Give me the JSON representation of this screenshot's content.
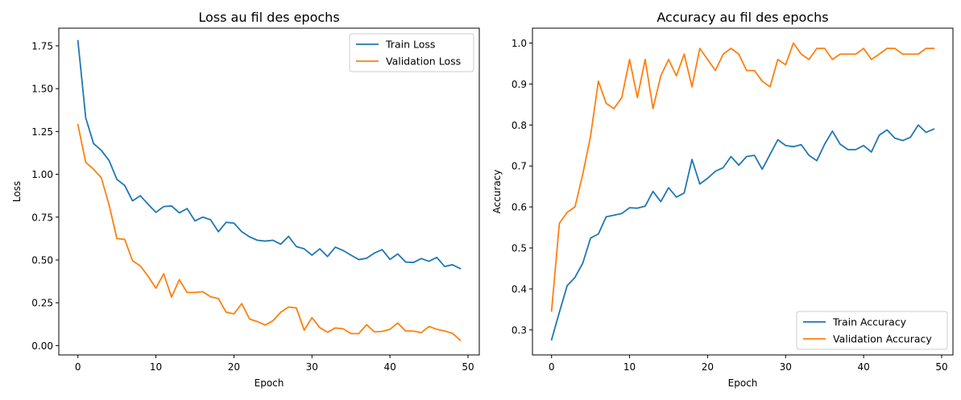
{
  "chart_data": [
    {
      "type": "line",
      "title": "Loss au fil des epochs",
      "xlabel": "Epoch",
      "ylabel": "Loss",
      "xlim": [
        -2.45,
        51.45
      ],
      "ylim": [
        -0.0546,
        1.8533
      ],
      "xticks": [
        0,
        10,
        20,
        30,
        40,
        50
      ],
      "yticks": [
        0.0,
        0.25,
        0.5,
        0.75,
        1.0,
        1.25,
        1.5,
        1.75
      ],
      "ytick_decimals": 2,
      "grid": false,
      "legend_position": "top-right",
      "x": [
        0,
        1,
        2,
        3,
        4,
        5,
        6,
        7,
        8,
        9,
        10,
        11,
        12,
        13,
        14,
        15,
        16,
        17,
        18,
        19,
        20,
        21,
        22,
        23,
        24,
        25,
        26,
        27,
        28,
        29,
        30,
        31,
        32,
        33,
        34,
        35,
        36,
        37,
        38,
        39,
        40,
        41,
        42,
        43,
        44,
        45,
        46,
        47,
        48,
        49
      ],
      "series": [
        {
          "name": "Train Loss",
          "color": "#1f77b4",
          "values": [
            1.78,
            1.33,
            1.18,
            1.14,
            1.08,
            0.97,
            0.935,
            0.845,
            0.875,
            0.825,
            0.778,
            0.812,
            0.815,
            0.775,
            0.8,
            0.728,
            0.75,
            0.735,
            0.665,
            0.72,
            0.715,
            0.665,
            0.635,
            0.615,
            0.61,
            0.615,
            0.592,
            0.638,
            0.578,
            0.565,
            0.528,
            0.565,
            0.52,
            0.575,
            0.555,
            0.528,
            0.502,
            0.51,
            0.54,
            0.56,
            0.503,
            0.535,
            0.488,
            0.485,
            0.508,
            0.492,
            0.515,
            0.462,
            0.472,
            0.45
          ]
        },
        {
          "name": "Validation Loss",
          "color": "#ff7f0e",
          "values": [
            1.29,
            1.07,
            1.03,
            0.98,
            0.82,
            0.625,
            0.62,
            0.495,
            0.465,
            0.405,
            0.335,
            0.42,
            0.283,
            0.385,
            0.31,
            0.31,
            0.315,
            0.285,
            0.275,
            0.195,
            0.185,
            0.245,
            0.155,
            0.14,
            0.12,
            0.145,
            0.195,
            0.225,
            0.22,
            0.09,
            0.163,
            0.105,
            0.078,
            0.103,
            0.098,
            0.07,
            0.07,
            0.122,
            0.08,
            0.083,
            0.095,
            0.132,
            0.085,
            0.085,
            0.075,
            0.112,
            0.095,
            0.085,
            0.072,
            0.032
          ]
        }
      ]
    },
    {
      "type": "line",
      "title": "Accuracy au fil des epochs",
      "xlabel": "Epoch",
      "ylabel": "Accuracy",
      "xlim": [
        -2.45,
        51.45
      ],
      "ylim": [
        0.2389,
        1.0363
      ],
      "xticks": [
        0,
        10,
        20,
        30,
        40,
        50
      ],
      "yticks": [
        0.3,
        0.4,
        0.5,
        0.6,
        0.7,
        0.8,
        0.9,
        1.0
      ],
      "ytick_decimals": 1,
      "grid": false,
      "legend_position": "bottom-right",
      "x": [
        0,
        1,
        2,
        3,
        4,
        5,
        6,
        7,
        8,
        9,
        10,
        11,
        12,
        13,
        14,
        15,
        16,
        17,
        18,
        19,
        20,
        21,
        22,
        23,
        24,
        25,
        26,
        27,
        28,
        29,
        30,
        31,
        32,
        33,
        34,
        35,
        36,
        37,
        38,
        39,
        40,
        41,
        42,
        43,
        44,
        45,
        46,
        47,
        48,
        49
      ],
      "series": [
        {
          "name": "Train Accuracy",
          "color": "#1f77b4",
          "values": [
            0.276,
            0.343,
            0.408,
            0.428,
            0.463,
            0.524,
            0.534,
            0.576,
            0.58,
            0.584,
            0.598,
            0.597,
            0.602,
            0.638,
            0.613,
            0.647,
            0.624,
            0.634,
            0.716,
            0.656,
            0.67,
            0.687,
            0.696,
            0.723,
            0.702,
            0.723,
            0.726,
            0.692,
            0.728,
            0.764,
            0.75,
            0.747,
            0.752,
            0.726,
            0.713,
            0.753,
            0.785,
            0.753,
            0.74,
            0.74,
            0.75,
            0.734,
            0.775,
            0.788,
            0.768,
            0.762,
            0.77,
            0.8,
            0.782,
            0.79
          ]
        },
        {
          "name": "Validation Accuracy",
          "color": "#ff7f0e",
          "values": [
            0.346,
            0.56,
            0.587,
            0.6,
            0.68,
            0.773,
            0.907,
            0.853,
            0.84,
            0.867,
            0.96,
            0.867,
            0.96,
            0.84,
            0.92,
            0.96,
            0.92,
            0.973,
            0.893,
            0.987,
            0.96,
            0.933,
            0.973,
            0.987,
            0.973,
            0.933,
            0.933,
            0.907,
            0.893,
            0.96,
            0.947,
            1.0,
            0.973,
            0.96,
            0.987,
            0.987,
            0.96,
            0.973,
            0.973,
            0.973,
            0.987,
            0.96,
            0.973,
            0.987,
            0.987,
            0.973,
            0.973,
            0.973,
            0.987,
            0.987
          ]
        }
      ]
    }
  ]
}
